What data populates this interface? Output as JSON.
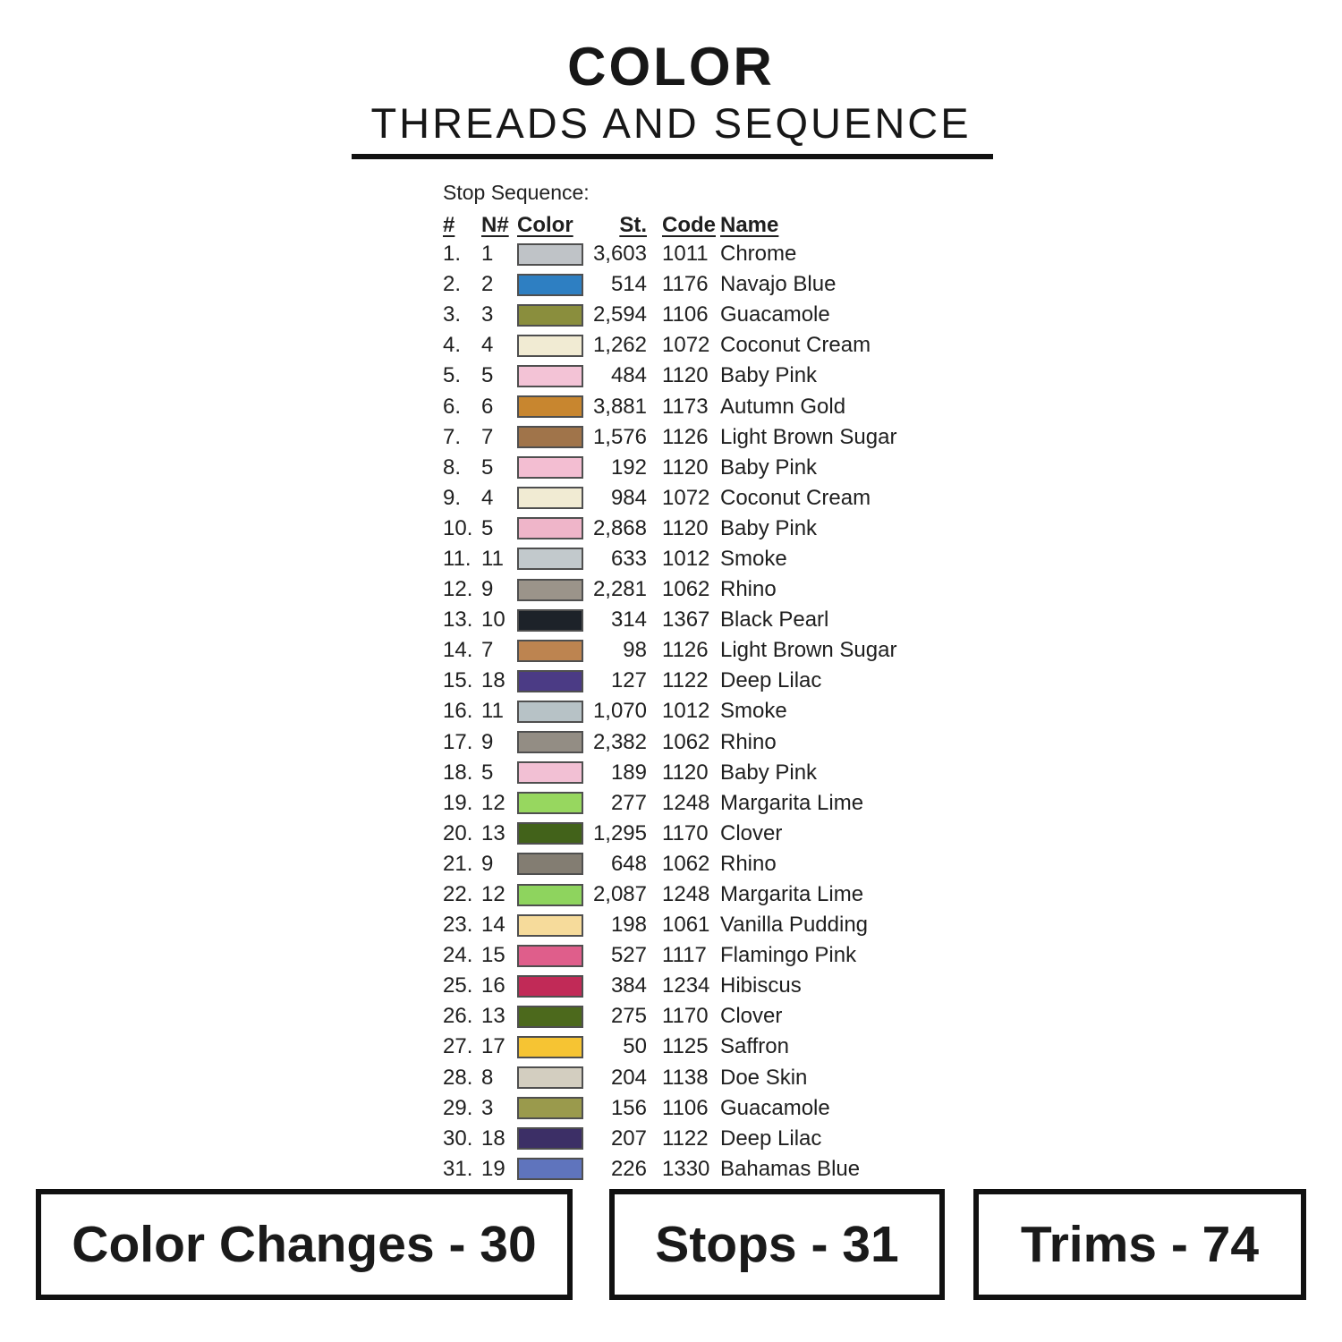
{
  "header": {
    "title_line1": "COLOR",
    "title_line2": "THREADS AND SEQUENCE"
  },
  "sequence": {
    "label": "Stop Sequence:",
    "columns": {
      "num": "#",
      "needle": "N#",
      "color": "Color",
      "stitches": "St.",
      "code": "Code",
      "name": "Name"
    },
    "rows": [
      {
        "num": "1.",
        "needle": "1",
        "swatch": "#bfc3c7",
        "stitches": "3,603",
        "code": "1011",
        "name": "Chrome"
      },
      {
        "num": "2.",
        "needle": "2",
        "swatch": "#2e7fc2",
        "stitches": "514",
        "code": "1176",
        "name": "Navajo Blue"
      },
      {
        "num": "3.",
        "needle": "3",
        "swatch": "#8a8e3d",
        "stitches": "2,594",
        "code": "1106",
        "name": "Guacamole"
      },
      {
        "num": "4.",
        "needle": "4",
        "swatch": "#f1ebd3",
        "stitches": "1,262",
        "code": "1072",
        "name": "Coconut Cream"
      },
      {
        "num": "5.",
        "needle": "5",
        "swatch": "#f3c3d6",
        "stitches": "484",
        "code": "1120",
        "name": "Baby Pink"
      },
      {
        "num": "6.",
        "needle": "6",
        "swatch": "#c8862f",
        "stitches": "3,881",
        "code": "1173",
        "name": "Autumn Gold"
      },
      {
        "num": "7.",
        "needle": "7",
        "swatch": "#a0744a",
        "stitches": "1,576",
        "code": "1126",
        "name": "Light Brown Sugar"
      },
      {
        "num": "8.",
        "needle": "5",
        "swatch": "#f3bed2",
        "stitches": "192",
        "code": "1120",
        "name": "Baby Pink"
      },
      {
        "num": "9.",
        "needle": "4",
        "swatch": "#f1ebd3",
        "stitches": "984",
        "code": "1072",
        "name": "Coconut Cream"
      },
      {
        "num": "10.",
        "needle": "5",
        "swatch": "#efb5c9",
        "stitches": "2,868",
        "code": "1120",
        "name": "Baby Pink"
      },
      {
        "num": "11.",
        "needle": "11",
        "swatch": "#c2c9cc",
        "stitches": "633",
        "code": "1012",
        "name": "Smoke"
      },
      {
        "num": "12.",
        "needle": "9",
        "swatch": "#9b948a",
        "stitches": "2,281",
        "code": "1062",
        "name": "Rhino"
      },
      {
        "num": "13.",
        "needle": "10",
        "swatch": "#1d2229",
        "stitches": "314",
        "code": "1367",
        "name": "Black Pearl"
      },
      {
        "num": "14.",
        "needle": "7",
        "swatch": "#bd8450",
        "stitches": "98",
        "code": "1126",
        "name": "Light Brown Sugar"
      },
      {
        "num": "15.",
        "needle": "18",
        "swatch": "#4b3b85",
        "stitches": "127",
        "code": "1122",
        "name": "Deep Lilac"
      },
      {
        "num": "16.",
        "needle": "11",
        "swatch": "#b7c2c6",
        "stitches": "1,070",
        "code": "1012",
        "name": "Smoke"
      },
      {
        "num": "17.",
        "needle": "9",
        "swatch": "#938d84",
        "stitches": "2,382",
        "code": "1062",
        "name": "Rhino"
      },
      {
        "num": "18.",
        "needle": "5",
        "swatch": "#f2c0d4",
        "stitches": "189",
        "code": "1120",
        "name": "Baby Pink"
      },
      {
        "num": "19.",
        "needle": "12",
        "swatch": "#97d75f",
        "stitches": "277",
        "code": "1248",
        "name": "Margarita Lime"
      },
      {
        "num": "20.",
        "needle": "13",
        "swatch": "#42621a",
        "stitches": "1,295",
        "code": "1170",
        "name": "Clover"
      },
      {
        "num": "21.",
        "needle": "9",
        "swatch": "#837d72",
        "stitches": "648",
        "code": "1062",
        "name": "Rhino"
      },
      {
        "num": "22.",
        "needle": "12",
        "swatch": "#8ed45e",
        "stitches": "2,087",
        "code": "1248",
        "name": "Margarita Lime"
      },
      {
        "num": "23.",
        "needle": "14",
        "swatch": "#f6db9b",
        "stitches": "198",
        "code": "1061",
        "name": "Vanilla Pudding"
      },
      {
        "num": "24.",
        "needle": "15",
        "swatch": "#df5e8b",
        "stitches": "527",
        "code": "1117",
        "name": "Flamingo Pink"
      },
      {
        "num": "25.",
        "needle": "16",
        "swatch": "#c12a57",
        "stitches": "384",
        "code": "1234",
        "name": "Hibiscus"
      },
      {
        "num": "26.",
        "needle": "13",
        "swatch": "#4c691c",
        "stitches": "275",
        "code": "1170",
        "name": "Clover"
      },
      {
        "num": "27.",
        "needle": "17",
        "swatch": "#f6c433",
        "stitches": "50",
        "code": "1125",
        "name": "Saffron"
      },
      {
        "num": "28.",
        "needle": "8",
        "swatch": "#d3cec0",
        "stitches": "204",
        "code": "1138",
        "name": "Doe Skin"
      },
      {
        "num": "29.",
        "needle": "3",
        "swatch": "#9a9a4c",
        "stitches": "156",
        "code": "1106",
        "name": "Guacamole"
      },
      {
        "num": "30.",
        "needle": "18",
        "swatch": "#3c2f66",
        "stitches": "207",
        "code": "1122",
        "name": "Deep Lilac"
      },
      {
        "num": "31.",
        "needle": "19",
        "swatch": "#5f74bd",
        "stitches": "226",
        "code": "1330",
        "name": "Bahamas Blue"
      }
    ]
  },
  "summary": {
    "color_changes": "Color Changes - 30",
    "stops": "Stops - 31",
    "trims": "Trims - 74"
  }
}
